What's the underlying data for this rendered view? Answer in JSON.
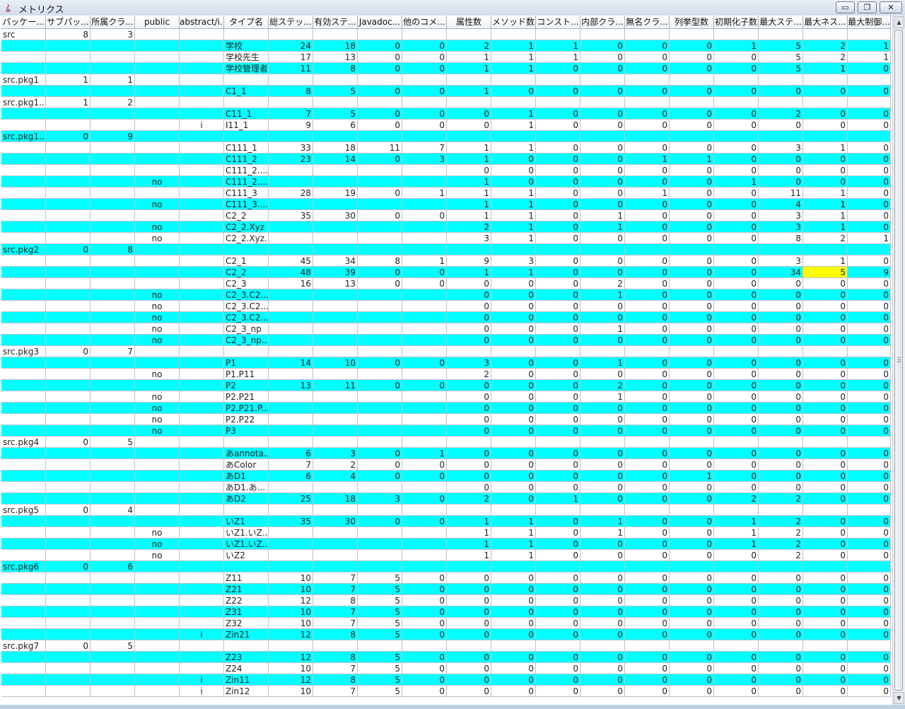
{
  "window": {
    "title": "メトリクス",
    "minimize": "▭",
    "maximize": "❐",
    "close": "✕"
  },
  "columns": [
    "パッケー...",
    "サブパッ...",
    "所属クラ...",
    "public",
    "abstract/i...",
    "タイプ名",
    "総ステッ...",
    "有効ステ...",
    "Javadoc...",
    "他のコメ...",
    "属性数",
    "メソッド数",
    "コンスト...",
    "内部クラ...",
    "無名クラ...",
    "列挙型数",
    "初期化子数",
    "最大ステ...",
    "最大ネス...",
    "最大制御..."
  ],
  "rows": [
    [
      "src",
      "8",
      "3",
      "",
      "",
      "",
      "",
      "",
      "",
      "",
      "",
      "",
      "",
      "",
      "",
      "",
      "",
      "",
      "",
      ""
    ],
    [
      "",
      "",
      "",
      "",
      "",
      "学校",
      "24",
      "18",
      "0",
      "0",
      "2",
      "1",
      "1",
      "0",
      "0",
      "0",
      "1",
      "5",
      "2",
      "1"
    ],
    [
      "",
      "",
      "",
      "",
      "",
      "学校先生",
      "17",
      "13",
      "0",
      "0",
      "1",
      "1",
      "1",
      "0",
      "0",
      "0",
      "0",
      "5",
      "2",
      "1"
    ],
    [
      "",
      "",
      "",
      "",
      "",
      "学校管理者",
      "11",
      "8",
      "0",
      "0",
      "1",
      "1",
      "0",
      "0",
      "0",
      "0",
      "0",
      "5",
      "1",
      "0"
    ],
    [
      "src.pkg1",
      "1",
      "1",
      "",
      "",
      "",
      "",
      "",
      "",
      "",
      "",
      "",
      "",
      "",
      "",
      "",
      "",
      "",
      "",
      ""
    ],
    [
      "",
      "",
      "",
      "",
      "",
      "C1_1",
      "8",
      "5",
      "0",
      "0",
      "1",
      "0",
      "0",
      "0",
      "0",
      "0",
      "0",
      "0",
      "0",
      "0"
    ],
    [
      "src.pkg1....",
      "1",
      "2",
      "",
      "",
      "",
      "",
      "",
      "",
      "",
      "",
      "",
      "",
      "",
      "",
      "",
      "",
      "",
      "",
      ""
    ],
    [
      "",
      "",
      "",
      "",
      "",
      "C11_1",
      "7",
      "5",
      "0",
      "0",
      "0",
      "1",
      "0",
      "0",
      "0",
      "0",
      "0",
      "2",
      "0",
      "0"
    ],
    [
      "",
      "",
      "",
      "",
      "i",
      "I11_1",
      "9",
      "6",
      "0",
      "0",
      "0",
      "1",
      "0",
      "0",
      "0",
      "0",
      "0",
      "0",
      "0",
      "0"
    ],
    [
      "src.pkg1....",
      "0",
      "9",
      "",
      "",
      "",
      "",
      "",
      "",
      "",
      "",
      "",
      "",
      "",
      "",
      "",
      "",
      "",
      "",
      ""
    ],
    [
      "",
      "",
      "",
      "",
      "",
      "C111_1",
      "33",
      "18",
      "11",
      "7",
      "1",
      "1",
      "0",
      "0",
      "0",
      "0",
      "0",
      "3",
      "1",
      "0"
    ],
    [
      "",
      "",
      "",
      "",
      "",
      "C111_2",
      "23",
      "14",
      "0",
      "3",
      "1",
      "0",
      "0",
      "0",
      "1",
      "1",
      "0",
      "0",
      "0",
      "0"
    ],
    [
      "",
      "",
      "",
      "",
      "",
      "C111_2....",
      "",
      "",
      "",
      "",
      "0",
      "0",
      "0",
      "0",
      "0",
      "0",
      "0",
      "0",
      "0",
      "0"
    ],
    [
      "",
      "",
      "",
      "no",
      "",
      "C111_2....",
      "",
      "",
      "",
      "",
      "1",
      "0",
      "0",
      "0",
      "0",
      "0",
      "1",
      "0",
      "0",
      "0"
    ],
    [
      "",
      "",
      "",
      "",
      "",
      "C111_3",
      "28",
      "19",
      "0",
      "1",
      "1",
      "1",
      "0",
      "0",
      "1",
      "0",
      "0",
      "11",
      "1",
      "0"
    ],
    [
      "",
      "",
      "",
      "no",
      "",
      "C111_3....",
      "",
      "",
      "",
      "",
      "1",
      "1",
      "0",
      "0",
      "0",
      "0",
      "0",
      "4",
      "1",
      "0"
    ],
    [
      "",
      "",
      "",
      "",
      "",
      "C2_2",
      "35",
      "30",
      "0",
      "0",
      "1",
      "1",
      "0",
      "1",
      "0",
      "0",
      "0",
      "3",
      "1",
      "0"
    ],
    [
      "",
      "",
      "",
      "no",
      "",
      "C2_2.Xyz",
      "",
      "",
      "",
      "",
      "2",
      "1",
      "0",
      "1",
      "0",
      "0",
      "0",
      "3",
      "1",
      "0"
    ],
    [
      "",
      "",
      "",
      "no",
      "",
      "C2_2.Xyz...",
      "",
      "",
      "",
      "",
      "3",
      "1",
      "0",
      "0",
      "0",
      "0",
      "0",
      "8",
      "2",
      "1"
    ],
    [
      "src.pkg2",
      "0",
      "8",
      "",
      "",
      "",
      "",
      "",
      "",
      "",
      "",
      "",
      "",
      "",
      "",
      "",
      "",
      "",
      "",
      ""
    ],
    [
      "",
      "",
      "",
      "",
      "",
      "C2_1",
      "45",
      "34",
      "8",
      "1",
      "9",
      "3",
      "0",
      "0",
      "0",
      "0",
      "0",
      "3",
      "1",
      "0"
    ],
    [
      "",
      "",
      "",
      "",
      "",
      "C2_2",
      "48",
      "39",
      "0",
      "0",
      "1",
      "1",
      "0",
      "0",
      "0",
      "0",
      "0",
      "34",
      "5",
      "9"
    ],
    [
      "",
      "",
      "",
      "",
      "",
      "C2_3",
      "16",
      "13",
      "0",
      "0",
      "0",
      "0",
      "0",
      "2",
      "0",
      "0",
      "0",
      "0",
      "0",
      "0"
    ],
    [
      "",
      "",
      "",
      "no",
      "",
      "C2_3.C2...",
      "",
      "",
      "",
      "",
      "0",
      "0",
      "0",
      "1",
      "0",
      "0",
      "0",
      "0",
      "0",
      "0"
    ],
    [
      "",
      "",
      "",
      "no",
      "",
      "C2_3.C2...",
      "",
      "",
      "",
      "",
      "0",
      "0",
      "0",
      "0",
      "0",
      "0",
      "0",
      "0",
      "0",
      "0"
    ],
    [
      "",
      "",
      "",
      "no",
      "",
      "C2_3.C2...",
      "",
      "",
      "",
      "",
      "0",
      "0",
      "0",
      "0",
      "0",
      "0",
      "0",
      "0",
      "0",
      "0"
    ],
    [
      "",
      "",
      "",
      "no",
      "",
      "C2_3_np",
      "",
      "",
      "",
      "",
      "0",
      "0",
      "0",
      "1",
      "0",
      "0",
      "0",
      "0",
      "0",
      "0"
    ],
    [
      "",
      "",
      "",
      "no",
      "",
      "C2_3_np...",
      "",
      "",
      "",
      "",
      "0",
      "0",
      "0",
      "0",
      "0",
      "0",
      "0",
      "0",
      "0",
      "0"
    ],
    [
      "src.pkg3",
      "0",
      "7",
      "",
      "",
      "",
      "",
      "",
      "",
      "",
      "",
      "",
      "",
      "",
      "",
      "",
      "",
      "",
      "",
      ""
    ],
    [
      "",
      "",
      "",
      "",
      "",
      "P1",
      "14",
      "10",
      "0",
      "0",
      "3",
      "0",
      "0",
      "1",
      "0",
      "0",
      "0",
      "0",
      "0",
      "0"
    ],
    [
      "",
      "",
      "",
      "no",
      "",
      "P1.P11",
      "",
      "",
      "",
      "",
      "2",
      "0",
      "0",
      "0",
      "0",
      "0",
      "0",
      "0",
      "0",
      "0"
    ],
    [
      "",
      "",
      "",
      "",
      "",
      "P2",
      "13",
      "11",
      "0",
      "0",
      "0",
      "0",
      "0",
      "2",
      "0",
      "0",
      "0",
      "0",
      "0",
      "0"
    ],
    [
      "",
      "",
      "",
      "no",
      "",
      "P2.P21",
      "",
      "",
      "",
      "",
      "0",
      "0",
      "0",
      "1",
      "0",
      "0",
      "0",
      "0",
      "0",
      "0"
    ],
    [
      "",
      "",
      "",
      "no",
      "",
      "P2.P21.P...",
      "",
      "",
      "",
      "",
      "0",
      "0",
      "0",
      "0",
      "0",
      "0",
      "0",
      "0",
      "0",
      "0"
    ],
    [
      "",
      "",
      "",
      "no",
      "",
      "P2.P22",
      "",
      "",
      "",
      "",
      "0",
      "0",
      "0",
      "0",
      "0",
      "0",
      "0",
      "0",
      "0",
      "0"
    ],
    [
      "",
      "",
      "",
      "no",
      "",
      "P3",
      "",
      "",
      "",
      "",
      "0",
      "0",
      "0",
      "0",
      "0",
      "0",
      "0",
      "0",
      "0",
      "0"
    ],
    [
      "src.pkg4",
      "0",
      "5",
      "",
      "",
      "",
      "",
      "",
      "",
      "",
      "",
      "",
      "",
      "",
      "",
      "",
      "",
      "",
      "",
      ""
    ],
    [
      "",
      "",
      "",
      "",
      "",
      "あannota...",
      "6",
      "3",
      "0",
      "1",
      "0",
      "0",
      "0",
      "0",
      "0",
      "0",
      "0",
      "0",
      "0",
      "0"
    ],
    [
      "",
      "",
      "",
      "",
      "",
      "あColor",
      "7",
      "2",
      "0",
      "0",
      "0",
      "0",
      "0",
      "0",
      "0",
      "0",
      "0",
      "0",
      "0",
      "0"
    ],
    [
      "",
      "",
      "",
      "",
      "",
      "あD1",
      "6",
      "4",
      "0",
      "0",
      "0",
      "0",
      "0",
      "0",
      "0",
      "1",
      "0",
      "0",
      "0",
      "0"
    ],
    [
      "",
      "",
      "",
      "",
      "",
      "あD1.あ...",
      "",
      "",
      "",
      "",
      "0",
      "0",
      "0",
      "0",
      "0",
      "0",
      "0",
      "0",
      "0",
      "0"
    ],
    [
      "",
      "",
      "",
      "",
      "",
      "あD2",
      "25",
      "18",
      "3",
      "0",
      "2",
      "0",
      "1",
      "0",
      "0",
      "0",
      "2",
      "2",
      "0",
      "0"
    ],
    [
      "src.pkg5",
      "0",
      "4",
      "",
      "",
      "",
      "",
      "",
      "",
      "",
      "",
      "",
      "",
      "",
      "",
      "",
      "",
      "",
      "",
      ""
    ],
    [
      "",
      "",
      "",
      "",
      "",
      "いZ1",
      "35",
      "30",
      "0",
      "0",
      "1",
      "1",
      "0",
      "1",
      "0",
      "0",
      "1",
      "2",
      "0",
      "0"
    ],
    [
      "",
      "",
      "",
      "no",
      "",
      "いZ1.いZ...",
      "",
      "",
      "",
      "",
      "1",
      "1",
      "0",
      "1",
      "0",
      "0",
      "1",
      "2",
      "0",
      "0"
    ],
    [
      "",
      "",
      "",
      "no",
      "",
      "いZ1.いZ...",
      "",
      "",
      "",
      "",
      "1",
      "1",
      "0",
      "0",
      "0",
      "0",
      "1",
      "2",
      "0",
      "0"
    ],
    [
      "",
      "",
      "",
      "no",
      "",
      "いZ2",
      "",
      "",
      "",
      "",
      "1",
      "1",
      "0",
      "0",
      "0",
      "0",
      "0",
      "2",
      "0",
      "0"
    ],
    [
      "src.pkg6",
      "0",
      "6",
      "",
      "",
      "",
      "",
      "",
      "",
      "",
      "",
      "",
      "",
      "",
      "",
      "",
      "",
      "",
      "",
      ""
    ],
    [
      "",
      "",
      "",
      "",
      "",
      "Z11",
      "10",
      "7",
      "5",
      "0",
      "0",
      "0",
      "0",
      "0",
      "0",
      "0",
      "0",
      "0",
      "0",
      "0"
    ],
    [
      "",
      "",
      "",
      "",
      "",
      "Z21",
      "10",
      "7",
      "5",
      "0",
      "0",
      "0",
      "0",
      "0",
      "0",
      "0",
      "0",
      "0",
      "0",
      "0"
    ],
    [
      "",
      "",
      "",
      "",
      "",
      "Z22",
      "12",
      "8",
      "5",
      "0",
      "0",
      "0",
      "0",
      "0",
      "0",
      "0",
      "0",
      "0",
      "0",
      "0"
    ],
    [
      "",
      "",
      "",
      "",
      "",
      "Z31",
      "10",
      "7",
      "5",
      "0",
      "0",
      "0",
      "0",
      "0",
      "0",
      "0",
      "0",
      "0",
      "0",
      "0"
    ],
    [
      "",
      "",
      "",
      "",
      "",
      "Z32",
      "10",
      "7",
      "5",
      "0",
      "0",
      "0",
      "0",
      "0",
      "0",
      "0",
      "0",
      "0",
      "0",
      "0"
    ],
    [
      "",
      "",
      "",
      "",
      "i",
      "Zin21",
      "12",
      "8",
      "5",
      "0",
      "0",
      "0",
      "0",
      "0",
      "0",
      "0",
      "0",
      "0",
      "0",
      "0"
    ],
    [
      "src.pkg7",
      "0",
      "5",
      "",
      "",
      "",
      "",
      "",
      "",
      "",
      "",
      "",
      "",
      "",
      "",
      "",
      "",
      "",
      "",
      ""
    ],
    [
      "",
      "",
      "",
      "",
      "",
      "Z23",
      "12",
      "8",
      "5",
      "0",
      "0",
      "0",
      "0",
      "0",
      "0",
      "0",
      "0",
      "0",
      "0",
      "0"
    ],
    [
      "",
      "",
      "",
      "",
      "",
      "Z24",
      "10",
      "7",
      "5",
      "0",
      "0",
      "0",
      "0",
      "0",
      "0",
      "0",
      "0",
      "0",
      "0",
      "0"
    ],
    [
      "",
      "",
      "",
      "",
      "i",
      "Zin11",
      "12",
      "8",
      "5",
      "0",
      "0",
      "0",
      "0",
      "0",
      "0",
      "0",
      "0",
      "0",
      "0",
      "0"
    ],
    [
      "",
      "",
      "",
      "",
      "i",
      "Zin12",
      "10",
      "7",
      "5",
      "0",
      "0",
      "0",
      "0",
      "0",
      "0",
      "0",
      "0",
      "0",
      "0",
      "0"
    ]
  ],
  "highlight_cell": {
    "row": 21,
    "col": 18,
    "color": "#ffff00"
  },
  "row_colors": {
    "cyan": "#00ffff",
    "white": "#ffffff"
  }
}
